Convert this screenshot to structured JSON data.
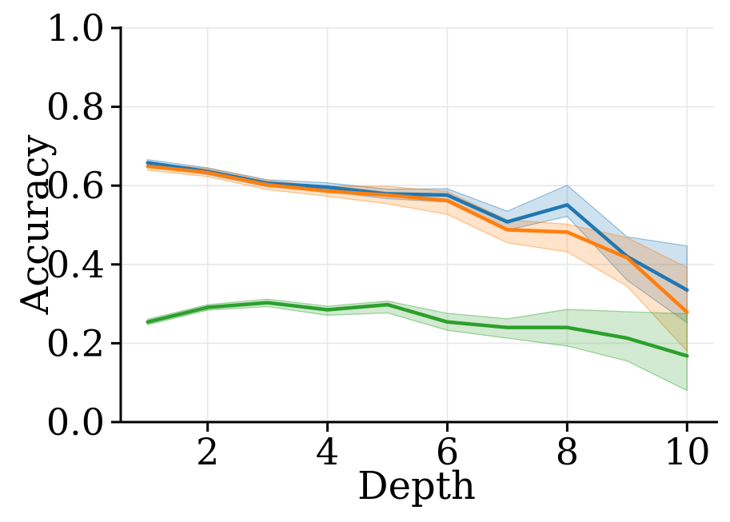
{
  "chart_data": {
    "type": "line",
    "title": "",
    "xlabel": "Depth",
    "ylabel": "Accuracy",
    "x": [
      1,
      2,
      3,
      4,
      5,
      6,
      7,
      8,
      9,
      10
    ],
    "xlim": [
      0.55,
      10.45
    ],
    "ylim": [
      0.0,
      1.0
    ],
    "xticks": [
      2,
      4,
      6,
      8,
      10
    ],
    "yticks": [
      0.0,
      0.2,
      0.4,
      0.6,
      0.8,
      1.0
    ],
    "grid": true,
    "legend_position": "none",
    "band_opacity": 0.22,
    "series": [
      {
        "name": "blue-series",
        "color": "#1f77b4",
        "values": [
          0.658,
          0.636,
          0.606,
          0.596,
          0.579,
          0.576,
          0.508,
          0.551,
          0.42,
          0.335
        ],
        "band_low": [
          0.65,
          0.628,
          0.597,
          0.585,
          0.567,
          0.558,
          0.487,
          0.522,
          0.36,
          0.252
        ],
        "band_high": [
          0.666,
          0.645,
          0.615,
          0.607,
          0.591,
          0.592,
          0.535,
          0.601,
          0.47,
          0.447
        ]
      },
      {
        "name": "orange-series",
        "color": "#ff7f0e",
        "values": [
          0.649,
          0.633,
          0.602,
          0.586,
          0.576,
          0.562,
          0.488,
          0.482,
          0.417,
          0.279
        ],
        "band_low": [
          0.639,
          0.623,
          0.59,
          0.573,
          0.554,
          0.527,
          0.455,
          0.432,
          0.345,
          0.18
        ],
        "band_high": [
          0.657,
          0.644,
          0.613,
          0.598,
          0.598,
          0.585,
          0.513,
          0.502,
          0.468,
          0.392
        ]
      },
      {
        "name": "green-series",
        "color": "#2ca02c",
        "values": [
          0.254,
          0.291,
          0.303,
          0.285,
          0.298,
          0.254,
          0.24,
          0.24,
          0.213,
          0.168
        ],
        "band_low": [
          0.247,
          0.284,
          0.293,
          0.271,
          0.277,
          0.233,
          0.213,
          0.193,
          0.155,
          0.08
        ],
        "band_high": [
          0.261,
          0.298,
          0.312,
          0.294,
          0.307,
          0.276,
          0.262,
          0.286,
          0.28,
          0.275
        ]
      }
    ],
    "colors": {
      "grid": "#e9e9e9",
      "spine": "#000000",
      "text": "#000000",
      "background": "#ffffff"
    }
  }
}
